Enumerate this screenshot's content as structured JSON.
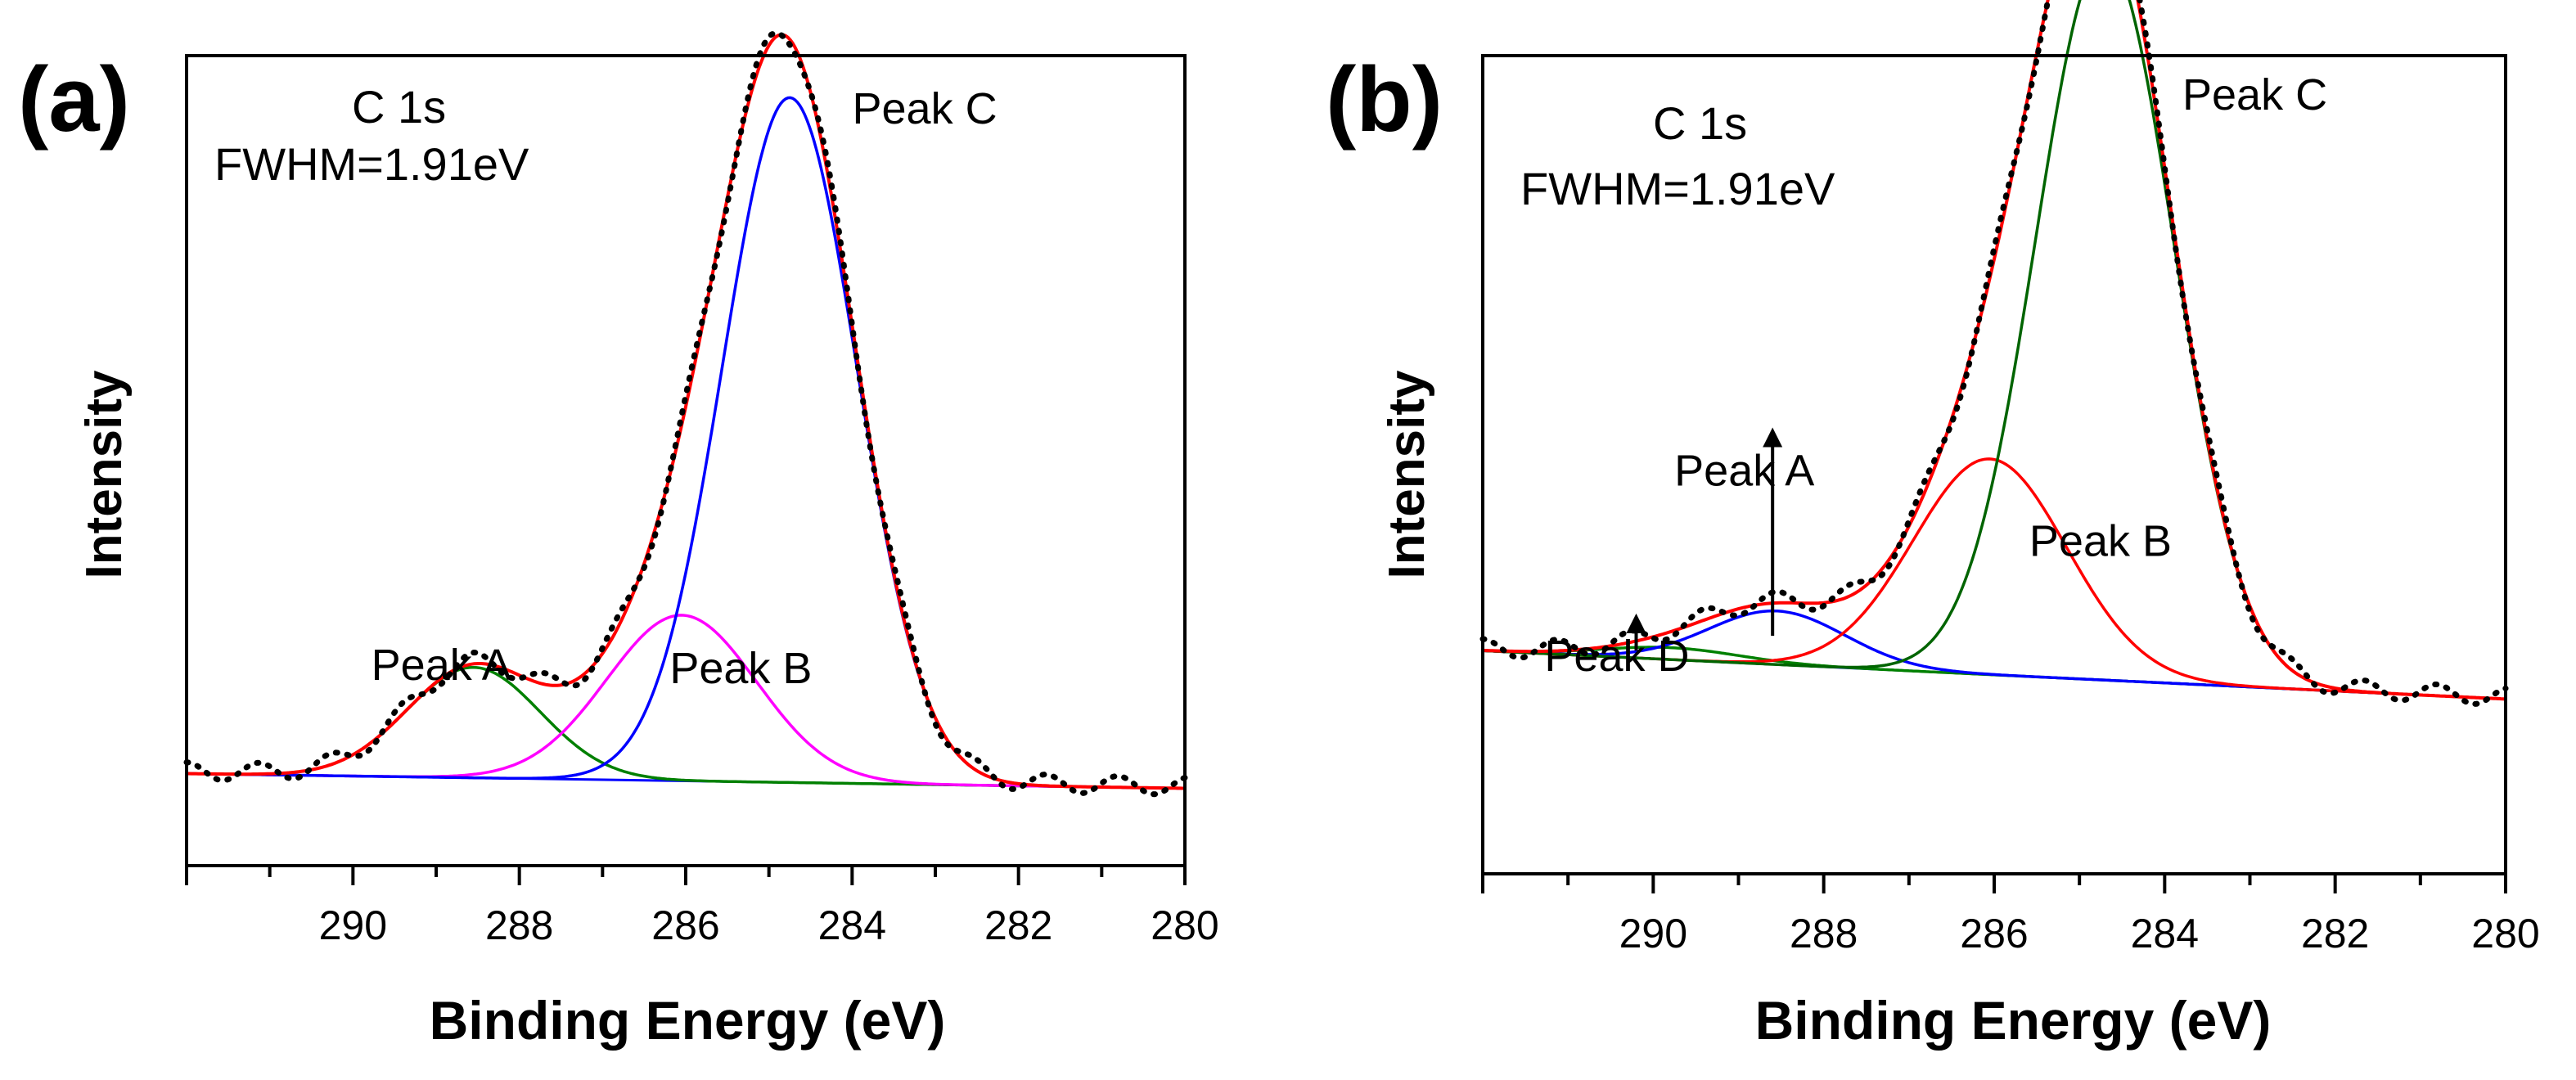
{
  "chart_data": [
    {
      "type": "line",
      "panel_label": "(a)",
      "xlabel": "Binding Energy (eV)",
      "ylabel": "Intensity",
      "xlim": [
        292,
        280
      ],
      "ylim": [
        0,
        1.1
      ],
      "x_ticks": [
        290,
        288,
        286,
        284,
        282,
        280
      ],
      "annotations": [
        {
          "text": "C 1s"
        },
        {
          "text": "FWHM=1.91eV"
        }
      ],
      "peak_labels": [
        {
          "text": "Peak A",
          "x": 288.6,
          "y": 0.23
        },
        {
          "text": "Peak B",
          "x": 285.8,
          "y": 0.22
        },
        {
          "text": "Peak C",
          "x": 283.9,
          "y": 0.98
        }
      ],
      "baseline": {
        "start": 0.125,
        "end": 0.105
      },
      "peaks": [
        {
          "name": "Peak A",
          "center": 288.55,
          "height": 0.15,
          "sigma": 0.8,
          "color": "#008000"
        },
        {
          "name": "Peak B",
          "center": 286.05,
          "height": 0.225,
          "sigma": 0.9,
          "color": "#ff00ff"
        },
        {
          "name": "Peak C",
          "center": 284.75,
          "height": 0.93,
          "sigma": 0.81,
          "color": "#0000ff"
        }
      ],
      "envelope_color": "#ff0000",
      "data_color": "#000000"
    },
    {
      "type": "line",
      "panel_label": "(b)",
      "xlabel": "Binding Energy (eV)",
      "ylabel": "Intensity",
      "xlim": [
        292,
        280
      ],
      "ylim": [
        0,
        1.1
      ],
      "x_ticks": [
        290,
        288,
        286,
        284,
        282,
        280
      ],
      "annotations": [
        {
          "text": "C 1s"
        },
        {
          "text": "FWHM=1.91eV"
        }
      ],
      "peak_labels": [
        {
          "text": "Peak D",
          "x": 290.7,
          "y": 0.24
        },
        {
          "text": "Peak A",
          "x": 288.6,
          "y": 0.5
        },
        {
          "text": "Peak B",
          "x": 285.3,
          "y": 0.4
        },
        {
          "text": "Peak C",
          "x": 283.6,
          "y": 1.0
        }
      ],
      "arrows": [
        {
          "x": 290.2,
          "y_from": 0.3,
          "y_to": 0.35,
          "label": "Peak D"
        },
        {
          "x": 288.6,
          "y_from": 0.32,
          "y_to": 0.6,
          "label": "Peak A"
        }
      ],
      "baseline": {
        "start": 0.3,
        "end": 0.235
      },
      "peaks": [
        {
          "name": "Peak D",
          "center": 289.8,
          "height": 0.016,
          "sigma": 0.8,
          "color": "#008000"
        },
        {
          "name": "Peak A",
          "center": 288.55,
          "height": 0.072,
          "sigma": 0.8,
          "color": "#0000ff"
        },
        {
          "name": "Peak B",
          "center": 286.05,
          "height": 0.29,
          "sigma": 0.9,
          "color": "#ff0000"
        },
        {
          "name": "Peak C",
          "center": 284.7,
          "height": 0.975,
          "sigma": 0.81,
          "color": "#006400"
        }
      ],
      "envelope_color": "#ff0000",
      "data_color": "#000000"
    }
  ]
}
